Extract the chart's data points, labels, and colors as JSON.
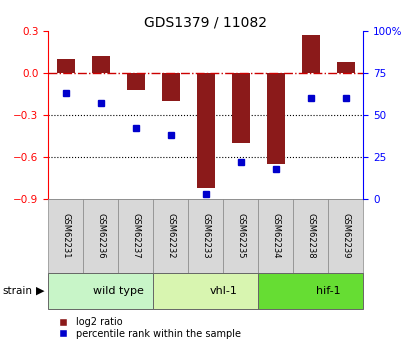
{
  "title": "GDS1379 / 11082",
  "samples": [
    "GSM62231",
    "GSM62236",
    "GSM62237",
    "GSM62232",
    "GSM62233",
    "GSM62235",
    "GSM62234",
    "GSM62238",
    "GSM62239"
  ],
  "log2_ratio": [
    0.1,
    0.12,
    -0.12,
    -0.2,
    -0.82,
    -0.5,
    -0.65,
    0.27,
    0.08
  ],
  "percentile_rank": [
    63,
    57,
    42,
    38,
    3,
    22,
    18,
    60,
    60
  ],
  "groups": [
    {
      "label": "wild type",
      "start": 0,
      "end": 3,
      "color": "#c8f5c8"
    },
    {
      "label": "vhl-1",
      "start": 3,
      "end": 6,
      "color": "#d8f5b0"
    },
    {
      "label": "hif-1",
      "start": 6,
      "end": 9,
      "color": "#66dd33"
    }
  ],
  "ylim_left": [
    -0.9,
    0.3
  ],
  "ylim_right": [
    0,
    100
  ],
  "yticks_left": [
    -0.9,
    -0.6,
    -0.3,
    0.0,
    0.3
  ],
  "yticks_right": [
    0,
    25,
    50,
    75,
    100
  ],
  "bar_color": "#8B1A1A",
  "dot_color": "#0000CC",
  "zero_line_color": "#CC0000",
  "bg_color": "#FFFFFF",
  "legend_bar_label": "log2 ratio",
  "legend_dot_label": "percentile rank within the sample",
  "strain_label": "strain"
}
